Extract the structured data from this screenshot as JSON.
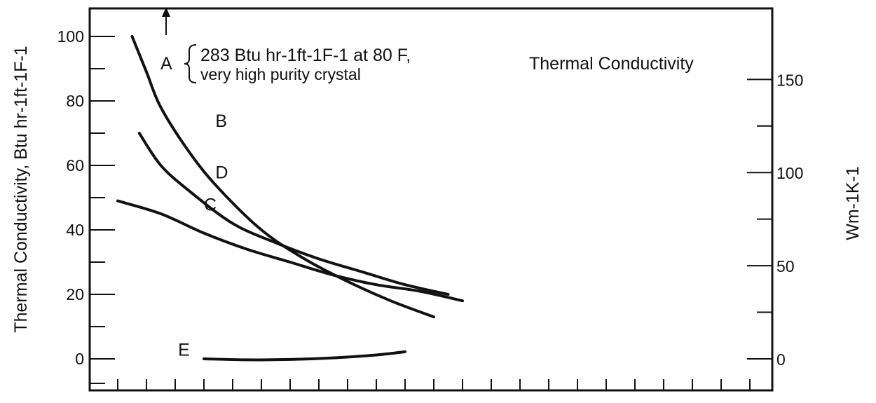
{
  "chart_data": {
    "type": "line",
    "title": "Thermal Conductivity",
    "ylabel": "Thermal Conductivity, Btu hr-1ft-1F-1",
    "y2label": "Wm-1K-1",
    "xlabel": "",
    "ylim": [
      -8,
      108
    ],
    "y_ticks": [
      0,
      20,
      40,
      60,
      80,
      100
    ],
    "y2_ticks": [
      0,
      50,
      100,
      150
    ],
    "x_tick_count": 24,
    "grid": false,
    "annotation": {
      "marker": "A",
      "line1": "283 Btu hr-1ft-1F-1 at 80 F,",
      "line2": "very high purity crystal"
    },
    "series": [
      {
        "name": "B",
        "x": [
          0.5,
          1.0,
          1.5,
          2.5,
          3.5,
          5.0,
          6.5,
          8.0,
          9.5,
          11.0
        ],
        "values": [
          100,
          89,
          78,
          64,
          53,
          40,
          31,
          24,
          18,
          13
        ]
      },
      {
        "name": "D",
        "x": [
          0.75,
          1.5,
          2.5,
          4.0,
          5.5,
          7.0,
          8.5,
          10.0,
          11.5
        ],
        "values": [
          70,
          60,
          52,
          42,
          36,
          31,
          27,
          23,
          20
        ]
      },
      {
        "name": "C",
        "x": [
          0.0,
          1.5,
          3.0,
          4.5,
          6.0,
          7.5,
          9.0,
          10.5,
          12.0
        ],
        "values": [
          49,
          45,
          39,
          34,
          30,
          26,
          23,
          21,
          18
        ]
      },
      {
        "name": "E",
        "x": [
          3.0,
          4.5,
          6.0,
          7.5,
          9.0,
          10.0
        ],
        "values": [
          0,
          -0.3,
          -0.2,
          0.3,
          1.2,
          2.2
        ]
      }
    ]
  }
}
